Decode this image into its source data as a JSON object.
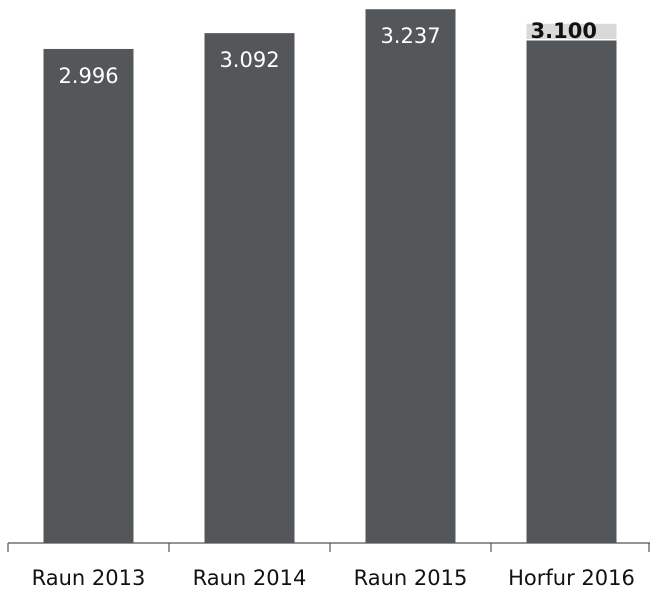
{
  "chart_data": {
    "type": "bar",
    "categories": [
      "Raun 2013",
      "Raun 2014",
      "Raun 2015",
      "Horfur 2016"
    ],
    "values": [
      2996,
      3092,
      3237,
      3100
    ],
    "value_labels": [
      "2.996",
      "3.092",
      "3.237",
      "3.100"
    ],
    "color": "#545759"
  }
}
